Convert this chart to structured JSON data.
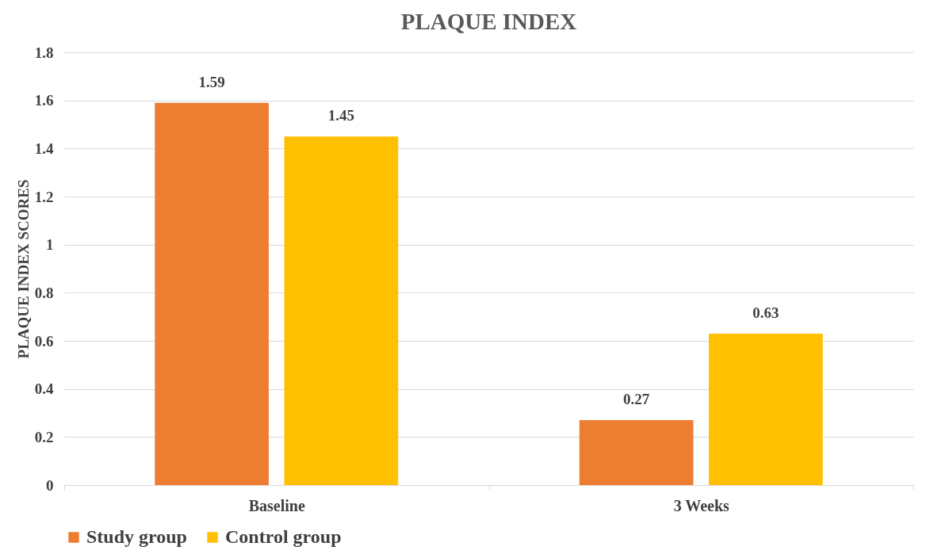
{
  "chart_data": {
    "type": "bar",
    "title": "PLAQUE INDEX",
    "ylabel": "PLAQUE INDEX SCORES",
    "categories": [
      "Baseline",
      "3 Weeks"
    ],
    "series": [
      {
        "name": "Study group",
        "color": "#ed7d31",
        "values": [
          1.59,
          0.27
        ]
      },
      {
        "name": "Control group",
        "color": "#ffc000",
        "values": [
          1.45,
          0.63
        ]
      }
    ],
    "ylim": [
      0,
      1.8
    ],
    "yticks": [
      0,
      0.2,
      0.4,
      0.6,
      0.8,
      1,
      1.2,
      1.4,
      1.6,
      1.8
    ],
    "grid": "y",
    "legend": "bottom",
    "data_labels": true
  }
}
